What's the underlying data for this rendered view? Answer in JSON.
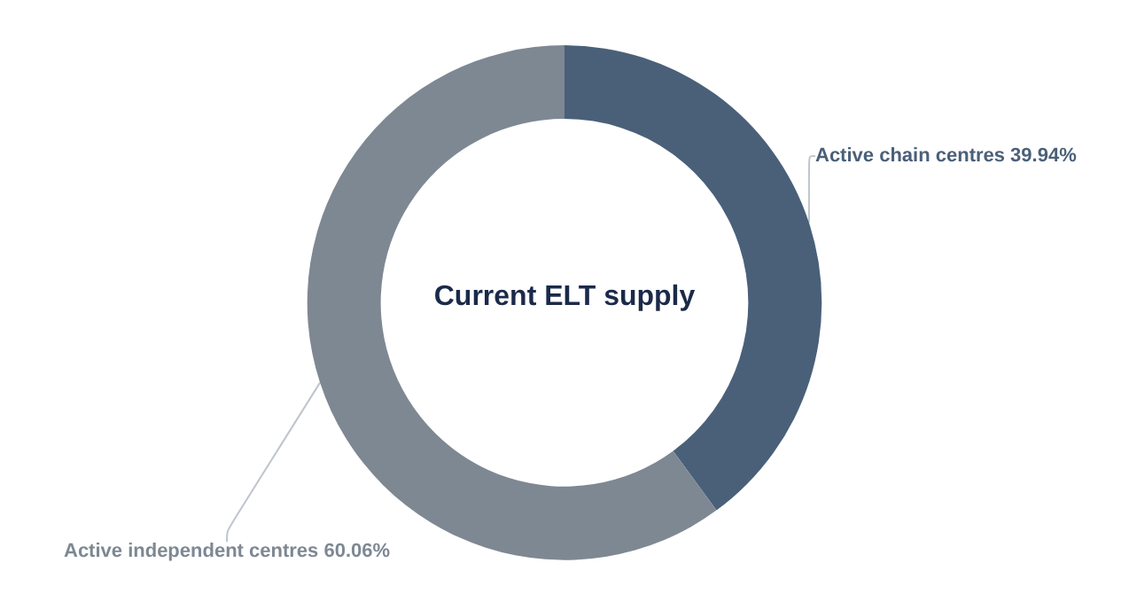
{
  "chart_data": {
    "type": "donut",
    "title": "Current ELT supply",
    "categories": [
      "Active chain centres",
      "Active independent centres"
    ],
    "values": [
      39.94,
      60.06
    ],
    "colors": [
      "#4a6079",
      "#7e8893"
    ],
    "value_labels": [
      "39.94%",
      "60.06%"
    ],
    "legend": false
  }
}
